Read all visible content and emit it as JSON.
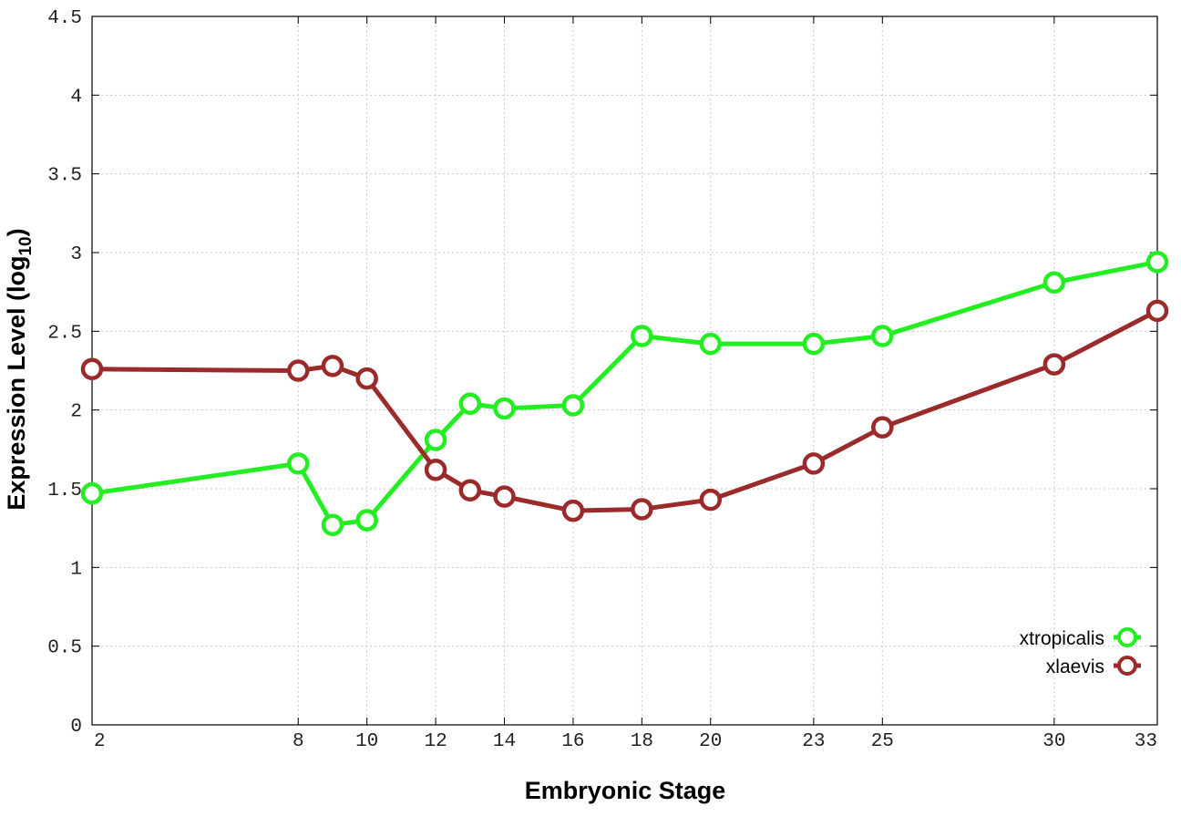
{
  "chart_data": {
    "type": "line",
    "title": "",
    "xlabel": "Embryonic Stage",
    "ylabel": "Expression Level (log",
    "ylabel_subscript": "10",
    "ylabel_suffix": ")",
    "x_ticks": [
      2,
      8,
      10,
      12,
      14,
      16,
      18,
      20,
      23,
      25,
      30,
      33
    ],
    "y_ticks": [
      0,
      0.5,
      1,
      1.5,
      2,
      2.5,
      3,
      3.5,
      4,
      4.5
    ],
    "y_tick_labels": [
      "0",
      "0.5",
      "1",
      "1.5",
      "2",
      "2.5",
      "3",
      "3.5",
      "4",
      "4.5"
    ],
    "xlim": [
      2,
      33
    ],
    "ylim": [
      0,
      4.5
    ],
    "grid": true,
    "legend_position": "bottom-right",
    "series": [
      {
        "name": "xtropicalis",
        "color": "#22ee22",
        "x": [
          2,
          8,
          9,
          10,
          12,
          13,
          14,
          16,
          18,
          20,
          23,
          25,
          30,
          33
        ],
        "y": [
          1.47,
          1.66,
          1.27,
          1.3,
          1.81,
          2.04,
          2.01,
          2.03,
          2.47,
          2.42,
          2.42,
          2.47,
          2.81,
          2.94
        ]
      },
      {
        "name": "xlaevis",
        "color": "#9b2a2a",
        "x": [
          2,
          8,
          9,
          10,
          12,
          13,
          14,
          16,
          18,
          20,
          23,
          25,
          30,
          33
        ],
        "y": [
          2.26,
          2.25,
          2.28,
          2.2,
          1.62,
          1.49,
          1.45,
          1.36,
          1.37,
          1.43,
          1.66,
          1.89,
          2.29,
          2.63
        ]
      }
    ]
  }
}
